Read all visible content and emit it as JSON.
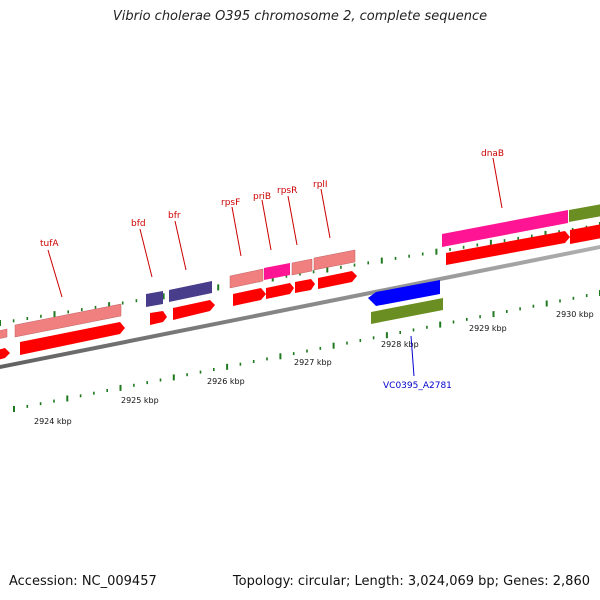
{
  "title": "Vibrio cholerae O395 chromosome 2, complete sequence",
  "footer": {
    "accession": "Accession: NC_009457",
    "stats": "Topology: circular; Length: 3,024,069 bp; Genes: 2,860"
  },
  "colors": {
    "backbone": "#808080",
    "tick": "#1f7a1f",
    "cds_red": "#ff0000",
    "gene_pink": "#f08080",
    "gene_magenta": "#ff1493",
    "gene_navy": "#483d8b",
    "gene_blue": "#0000ff",
    "gene_olive": "#6b8e23",
    "label_red": "#cc0000",
    "label_blue": "#0000cc"
  },
  "scale": {
    "labels": [
      "2924 kbp",
      "2925 kbp",
      "2926 kbp",
      "2927 kbp",
      "2928 kbp",
      "2929 kbp",
      "2930 kbp"
    ]
  },
  "genes": {
    "tufA": "tufA",
    "bfd": "bfd",
    "bfr": "bfr",
    "rpsF": "rpsF",
    "priB": "priB",
    "rpsR": "rpsR",
    "rplI": "rplI",
    "dnaB": "dnaB",
    "VC0395_A2781": "VC0395_A2781"
  }
}
